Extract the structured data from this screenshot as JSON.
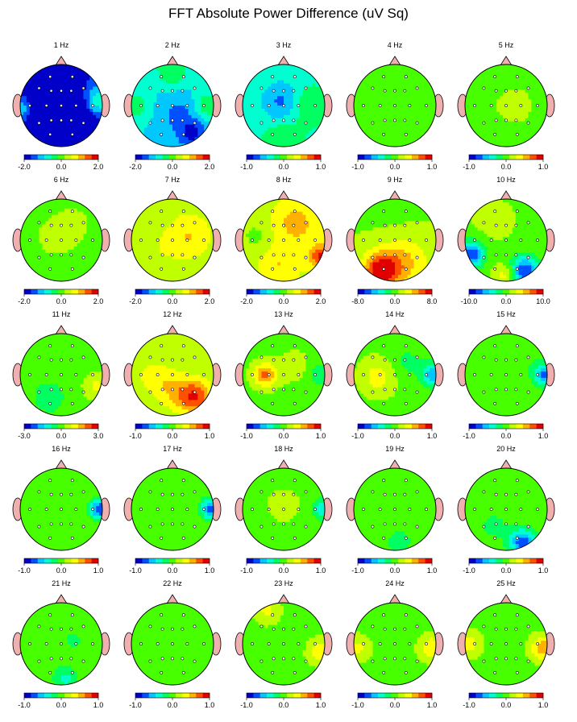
{
  "title": "FFT Absolute Power Difference  (uV Sq)",
  "colors": {
    "scale": [
      "#0000c8",
      "#0050ff",
      "#00c8ff",
      "#00ffd0",
      "#00ff60",
      "#48ff00",
      "#c0ff00",
      "#ffff00",
      "#ffb000",
      "#ff5000",
      "#e00000"
    ],
    "head_outline": "#000000",
    "ear_nose": "#f0b0b0",
    "electrode": "#ffffff"
  },
  "chart_data": {
    "type": "heatmap",
    "description_free": true,
    "electrodes": [
      {
        "x": -0.3,
        "y": -0.78
      },
      {
        "x": 0.3,
        "y": -0.78
      },
      {
        "x": -0.6,
        "y": -0.47
      },
      {
        "x": -0.27,
        "y": -0.4
      },
      {
        "x": 0.0,
        "y": -0.4
      },
      {
        "x": 0.27,
        "y": -0.4
      },
      {
        "x": 0.6,
        "y": -0.47
      },
      {
        "x": -0.85,
        "y": 0.0
      },
      {
        "x": -0.4,
        "y": 0.0
      },
      {
        "x": 0.0,
        "y": 0.0
      },
      {
        "x": 0.4,
        "y": 0.0
      },
      {
        "x": 0.85,
        "y": 0.0
      },
      {
        "x": -0.6,
        "y": 0.47
      },
      {
        "x": -0.27,
        "y": 0.4
      },
      {
        "x": 0.0,
        "y": 0.4
      },
      {
        "x": 0.27,
        "y": 0.4
      },
      {
        "x": 0.6,
        "y": 0.47
      },
      {
        "x": -0.3,
        "y": 0.78
      },
      {
        "x": 0.3,
        "y": 0.78
      }
    ],
    "maps": [
      {
        "label": "1 Hz",
        "range": [
          -2.0,
          2.0
        ],
        "ticks": [
          "-2.0",
          "0.0",
          "2.0"
        ],
        "base": -0.85,
        "blobs": [
          {
            "x": 0.0,
            "y": 0.45,
            "v": -1.25,
            "r": 0.45
          },
          {
            "x": -0.15,
            "y": -0.2,
            "v": -0.4,
            "r": 0.5
          },
          {
            "x": 0.85,
            "y": -0.1,
            "v": 0.6,
            "r": 0.25
          },
          {
            "x": -0.9,
            "y": 0.1,
            "v": 0.45,
            "r": 0.2
          }
        ]
      },
      {
        "label": "2 Hz",
        "range": [
          -2.0,
          2.0
        ],
        "ticks": [
          "-2.0",
          "0.0",
          "2.0"
        ],
        "base": -0.5,
        "blobs": [
          {
            "x": 0.2,
            "y": 0.2,
            "v": -0.25,
            "r": 0.4
          },
          {
            "x": 0.0,
            "y": -0.85,
            "v": 0.4,
            "r": 0.3
          },
          {
            "x": -0.9,
            "y": 0.0,
            "v": 0.35,
            "r": 0.25
          },
          {
            "x": 0.85,
            "y": 0.0,
            "v": 0.4,
            "r": 0.25
          },
          {
            "x": 0.5,
            "y": 0.7,
            "v": -0.4,
            "r": 0.25
          }
        ]
      },
      {
        "label": "3 Hz",
        "range": [
          -1.0,
          1.0
        ],
        "ticks": [
          "-1.0",
          "0.0",
          "1.0"
        ],
        "base": -0.35,
        "blobs": [
          {
            "x": -0.05,
            "y": -0.1,
            "v": -0.4,
            "r": 0.35
          },
          {
            "x": 0.6,
            "y": 0.0,
            "v": 0.3,
            "r": 0.3
          },
          {
            "x": 0.0,
            "y": 0.8,
            "v": 0.25,
            "r": 0.3
          }
        ]
      },
      {
        "label": "4 Hz",
        "range": [
          -1.0,
          1.0
        ],
        "ticks": [
          "-1.0",
          "0.0",
          "1.0"
        ],
        "base": 0.05,
        "blobs": []
      },
      {
        "label": "5 Hz",
        "range": [
          -1.0,
          1.0
        ],
        "ticks": [
          "-1.0",
          "0.0",
          "1.0"
        ],
        "base": 0.05,
        "blobs": [
          {
            "x": 0.2,
            "y": 0.0,
            "v": 0.1,
            "r": 0.35
          }
        ]
      },
      {
        "label": "6 Hz",
        "range": [
          -2.0,
          2.0
        ],
        "ticks": [
          "-2.0",
          "0.0",
          "2.0"
        ],
        "base": 0.05,
        "blobs": [
          {
            "x": -0.1,
            "y": -0.1,
            "v": 0.15,
            "r": 0.3
          },
          {
            "x": 0.3,
            "y": -0.4,
            "v": 0.12,
            "r": 0.25
          }
        ]
      },
      {
        "label": "7 Hz",
        "range": [
          -2.0,
          2.0
        ],
        "ticks": [
          "-2.0",
          "0.0",
          "2.0"
        ],
        "base": 0.15,
        "blobs": [
          {
            "x": 0.4,
            "y": -0.1,
            "v": 0.35,
            "r": 0.4
          },
          {
            "x": -0.2,
            "y": 0.2,
            "v": 0.1,
            "r": 0.3
          }
        ]
      },
      {
        "label": "8 Hz",
        "range": [
          -2.0,
          2.0
        ],
        "ticks": [
          "-2.0",
          "0.0",
          "2.0"
        ],
        "base": 0.25,
        "blobs": [
          {
            "x": 0.9,
            "y": 0.4,
            "v": 0.7,
            "r": 0.2
          },
          {
            "x": 0.3,
            "y": -0.4,
            "v": 0.35,
            "r": 0.35
          },
          {
            "x": -0.7,
            "y": -0.1,
            "v": -0.2,
            "r": 0.25
          },
          {
            "x": -0.1,
            "y": 0.6,
            "v": 0.25,
            "r": 0.3
          }
        ]
      },
      {
        "label": "9 Hz",
        "range": [
          -8.0,
          8.0
        ],
        "ticks": [
          "-8.0",
          "0.0",
          "8.0"
        ],
        "base": 0.1,
        "blobs": [
          {
            "x": -0.35,
            "y": 0.75,
            "v": 0.9,
            "r": 0.3
          },
          {
            "x": 0.2,
            "y": 0.55,
            "v": 0.45,
            "r": 0.45
          },
          {
            "x": 0.0,
            "y": -0.5,
            "v": -0.05,
            "r": 0.5
          }
        ]
      },
      {
        "label": "10 Hz",
        "range": [
          -10.0,
          10.0
        ],
        "ticks": [
          "-10.0",
          "0.0",
          "10.0"
        ],
        "base": 0.05,
        "blobs": [
          {
            "x": -0.85,
            "y": 0.35,
            "v": -0.95,
            "r": 0.22
          },
          {
            "x": 0.45,
            "y": 0.75,
            "v": -0.95,
            "r": 0.25
          },
          {
            "x": 0.0,
            "y": 0.85,
            "v": 0.4,
            "r": 0.2
          },
          {
            "x": -0.3,
            "y": -0.5,
            "v": 0.12,
            "r": 0.4
          }
        ]
      },
      {
        "label": "11 Hz",
        "range": [
          -3.0,
          3.0
        ],
        "ticks": [
          "-3.0",
          "0.0",
          "3.0"
        ],
        "base": 0.05,
        "blobs": [
          {
            "x": -0.3,
            "y": 0.55,
            "v": -0.25,
            "r": 0.35
          },
          {
            "x": 0.85,
            "y": 0.3,
            "v": 0.3,
            "r": 0.2
          }
        ]
      },
      {
        "label": "12 Hz",
        "range": [
          -1.0,
          1.0
        ],
        "ticks": [
          "-1.0",
          "0.0",
          "1.0"
        ],
        "base": 0.1,
        "blobs": [
          {
            "x": 0.55,
            "y": 0.55,
            "v": 0.75,
            "r": 0.3
          },
          {
            "x": 0.0,
            "y": 0.35,
            "v": 0.35,
            "r": 0.35
          },
          {
            "x": -0.5,
            "y": 0.0,
            "v": 0.25,
            "r": 0.3
          }
        ]
      },
      {
        "label": "13 Hz",
        "range": [
          -1.0,
          1.0
        ],
        "ticks": [
          "-1.0",
          "0.0",
          "1.0"
        ],
        "base": 0.05,
        "blobs": [
          {
            "x": -0.45,
            "y": 0.0,
            "v": 0.7,
            "r": 0.2
          },
          {
            "x": 0.9,
            "y": 0.0,
            "v": -0.35,
            "r": 0.2
          },
          {
            "x": 0.3,
            "y": -0.2,
            "v": 0.12,
            "r": 0.3
          }
        ]
      },
      {
        "label": "14 Hz",
        "range": [
          -1.0,
          1.0
        ],
        "ticks": [
          "-1.0",
          "0.0",
          "1.0"
        ],
        "base": 0.05,
        "blobs": [
          {
            "x": 0.95,
            "y": 0.0,
            "v": -0.7,
            "r": 0.2
          },
          {
            "x": -0.4,
            "y": 0.05,
            "v": 0.35,
            "r": 0.3
          },
          {
            "x": 0.3,
            "y": -0.3,
            "v": -0.2,
            "r": 0.3
          }
        ]
      },
      {
        "label": "15 Hz",
        "range": [
          -1.0,
          1.0
        ],
        "ticks": [
          "-1.0",
          "0.0",
          "1.0"
        ],
        "base": 0.05,
        "blobs": [
          {
            "x": 0.95,
            "y": 0.0,
            "v": -0.8,
            "r": 0.2
          },
          {
            "x": 0.3,
            "y": -0.4,
            "v": -0.15,
            "r": 0.3
          }
        ]
      },
      {
        "label": "16 Hz",
        "range": [
          -1.0,
          1.0
        ],
        "ticks": [
          "-1.0",
          "0.0",
          "1.0"
        ],
        "base": 0.05,
        "blobs": [
          {
            "x": 0.95,
            "y": 0.0,
            "v": -0.95,
            "r": 0.18
          }
        ]
      },
      {
        "label": "17 Hz",
        "range": [
          -1.0,
          1.0
        ],
        "ticks": [
          "-1.0",
          "0.0",
          "1.0"
        ],
        "base": 0.05,
        "blobs": [
          {
            "x": 0.95,
            "y": 0.0,
            "v": -0.9,
            "r": 0.18
          },
          {
            "x": 0.3,
            "y": -0.6,
            "v": -0.15,
            "r": 0.25
          }
        ]
      },
      {
        "label": "18 Hz",
        "range": [
          -1.0,
          1.0
        ],
        "ticks": [
          "-1.0",
          "0.0",
          "1.0"
        ],
        "base": 0.05,
        "blobs": [
          {
            "x": 0.95,
            "y": 0.0,
            "v": -0.55,
            "r": 0.18
          },
          {
            "x": 0.0,
            "y": -0.1,
            "v": 0.12,
            "r": 0.3
          }
        ]
      },
      {
        "label": "19 Hz",
        "range": [
          -1.0,
          1.0
        ],
        "ticks": [
          "-1.0",
          "0.0",
          "1.0"
        ],
        "base": 0.05,
        "blobs": [
          {
            "x": 0.1,
            "y": 0.8,
            "v": -0.3,
            "r": 0.22
          }
        ]
      },
      {
        "label": "20 Hz",
        "range": [
          -1.0,
          1.0
        ],
        "ticks": [
          "-1.0",
          "0.0",
          "1.0"
        ],
        "base": 0.05,
        "blobs": [
          {
            "x": 0.4,
            "y": 0.8,
            "v": -0.9,
            "r": 0.22
          },
          {
            "x": -0.3,
            "y": 0.4,
            "v": -0.2,
            "r": 0.3
          }
        ]
      },
      {
        "label": "21 Hz",
        "range": [
          -1.0,
          1.0
        ],
        "ticks": [
          "-1.0",
          "0.0",
          "1.0"
        ],
        "base": 0.05,
        "blobs": [
          {
            "x": 0.1,
            "y": 0.85,
            "v": -0.4,
            "r": 0.22
          },
          {
            "x": 0.3,
            "y": -0.1,
            "v": -0.2,
            "r": 0.2
          }
        ]
      },
      {
        "label": "22 Hz",
        "range": [
          -1.0,
          1.0
        ],
        "ticks": [
          "-1.0",
          "0.0",
          "1.0"
        ],
        "base": 0.05,
        "blobs": []
      },
      {
        "label": "23 Hz",
        "range": [
          -1.0,
          1.0
        ],
        "ticks": [
          "-1.0",
          "0.0",
          "1.0"
        ],
        "base": 0.05,
        "blobs": [
          {
            "x": 0.9,
            "y": 0.2,
            "v": 0.4,
            "r": 0.2
          },
          {
            "x": -0.4,
            "y": -0.8,
            "v": 0.3,
            "r": 0.2
          }
        ]
      },
      {
        "label": "24 Hz",
        "range": [
          -1.0,
          1.0
        ],
        "ticks": [
          "-1.0",
          "0.0",
          "1.0"
        ],
        "base": 0.05,
        "blobs": [
          {
            "x": 0.9,
            "y": 0.1,
            "v": 0.45,
            "r": 0.2
          },
          {
            "x": -0.9,
            "y": 0.1,
            "v": 0.3,
            "r": 0.2
          }
        ]
      },
      {
        "label": "25 Hz",
        "range": [
          -1.0,
          1.0
        ],
        "ticks": [
          "-1.0",
          "0.0",
          "1.0"
        ],
        "base": 0.05,
        "blobs": [
          {
            "x": 0.9,
            "y": 0.1,
            "v": 0.6,
            "r": 0.2
          },
          {
            "x": -0.9,
            "y": 0.0,
            "v": 0.35,
            "r": 0.2
          }
        ]
      }
    ]
  }
}
